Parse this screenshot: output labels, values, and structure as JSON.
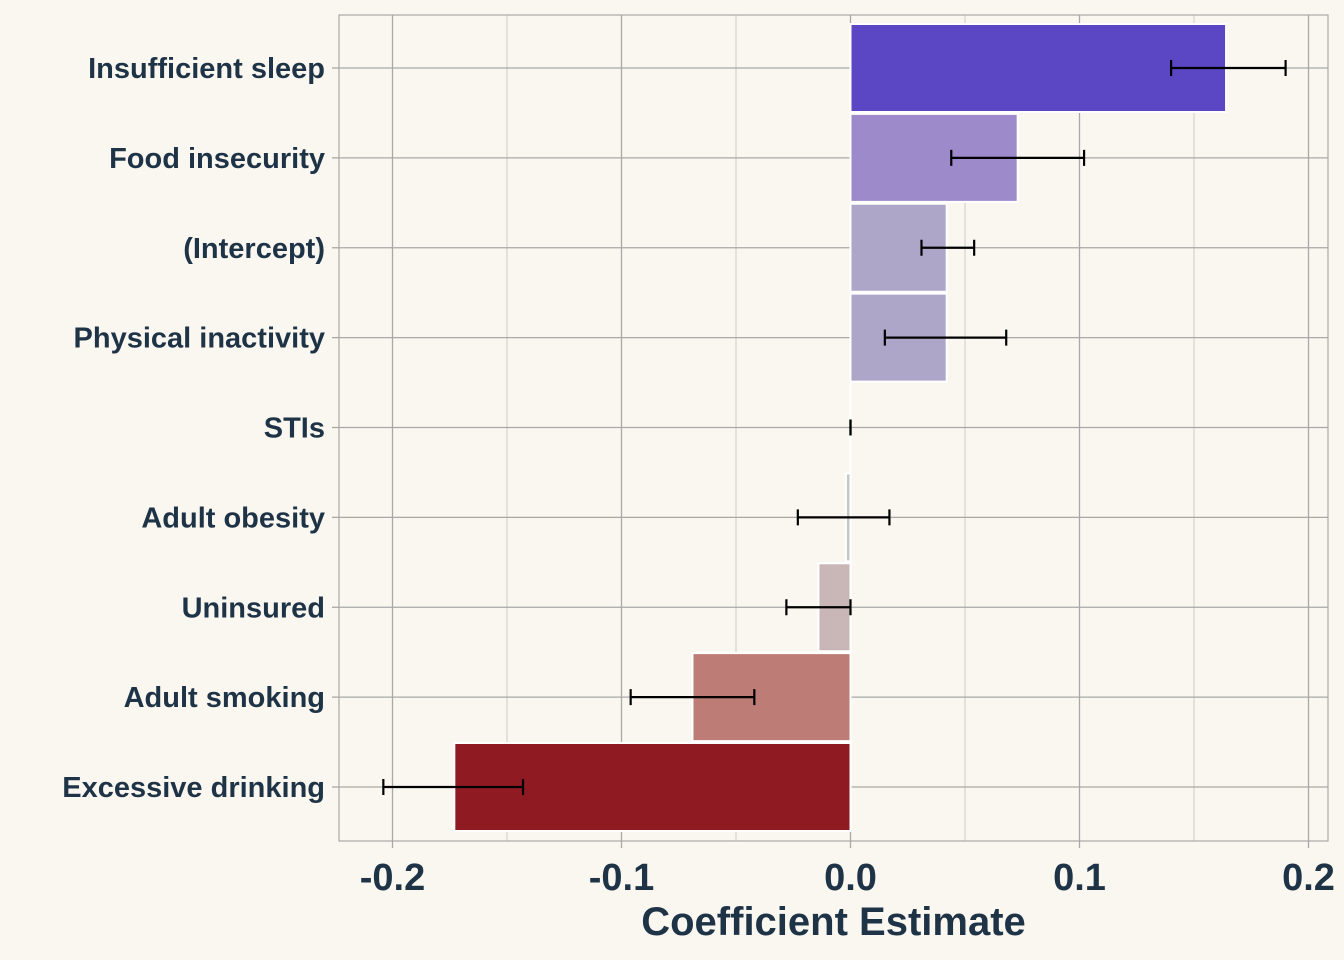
{
  "chart_data": {
    "type": "bar",
    "orientation": "horizontal",
    "title": "",
    "xlabel": "Coefficient Estimate",
    "ylabel": "",
    "xlim": [
      -0.2005,
      0.2005
    ],
    "x_ticks": [
      -0.2,
      -0.1,
      0.0,
      0.1,
      0.2
    ],
    "x_tick_labels": [
      "-0.2",
      "-0.1",
      "0.0",
      "0.1",
      "0.2"
    ],
    "grid": true,
    "legend": "none",
    "categories": [
      "Insufficient sleep",
      "Food insecurity",
      "(Intercept)",
      "Physical inactivity",
      "STIs",
      "Adult obesity",
      "Uninsured",
      "Adult smoking",
      "Excessive drinking"
    ],
    "values": [
      0.164,
      0.073,
      0.042,
      0.042,
      0.0,
      -0.002,
      -0.014,
      -0.069,
      -0.173
    ],
    "ci_low": [
      0.14,
      0.044,
      0.031,
      0.015,
      0.0,
      -0.023,
      -0.028,
      -0.096,
      -0.204
    ],
    "ci_high": [
      0.19,
      0.102,
      0.054,
      0.068,
      0.0,
      0.017,
      0.0,
      -0.042,
      -0.143
    ],
    "colors": [
      "#5B47C4",
      "#9C8ACB",
      "#AEA6C9",
      "#AEA6C9",
      "#CCCCCC",
      "#C9C6C6",
      "#C9B7B7",
      "#BD7C76",
      "#8F1A22"
    ],
    "background": "#FAF7F0",
    "grid_color": "#A8A8A8",
    "text_color": "#1F3347"
  }
}
